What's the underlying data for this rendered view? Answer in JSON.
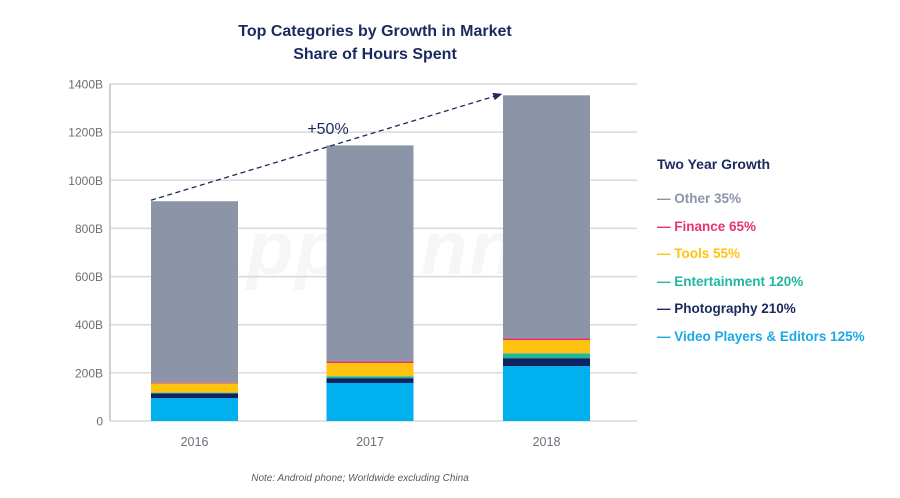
{
  "chart_data": {
    "type": "bar",
    "stacked": true,
    "title": "Top Categories by Growth in Market Share of Hours Spent",
    "title_lines": [
      "Top Categories by Growth in Market",
      "Share of Hours Spent"
    ],
    "xlabel": "",
    "ylabel": "",
    "categories": [
      "2016",
      "2017",
      "2018"
    ],
    "ylim": [
      0,
      1400
    ],
    "yticks": [
      0,
      200,
      400,
      600,
      800,
      1000,
      1200,
      1400
    ],
    "ytick_labels": [
      "0",
      "200B",
      "400B",
      "600B",
      "800B",
      "1000B",
      "1200B",
      "1400B"
    ],
    "grid": true,
    "series": [
      {
        "name": "Video Players & Editors",
        "color": "#00b0ef",
        "values": [
          95,
          158,
          228
        ]
      },
      {
        "name": "Photography",
        "color": "#0f2262",
        "values": [
          20,
          20,
          33
        ]
      },
      {
        "name": "Entertainment",
        "color": "#1fb89e",
        "values": [
          3,
          8,
          20
        ]
      },
      {
        "name": "Tools",
        "color": "#ffc20e",
        "values": [
          38,
          55,
          55
        ]
      },
      {
        "name": "Finance",
        "color": "#e8336e",
        "values": [
          3,
          7,
          7
        ]
      },
      {
        "name": "Other",
        "color": "#8c94a8",
        "values": [
          754,
          897,
          1010
        ]
      }
    ],
    "totals": [
      913,
      1145,
      1353
    ],
    "annotation": {
      "text": "+50%",
      "from": "2016",
      "to": "2018",
      "style": "dashed-arrow"
    },
    "legend": {
      "title": "Two Year Growth",
      "placement": "right",
      "items": [
        {
          "label": "Other 35%",
          "color": "#8c94a8"
        },
        {
          "label": "Finance 65%",
          "color": "#e8336e"
        },
        {
          "label": "Tools 55%",
          "color": "#ffc20e"
        },
        {
          "label": "Entertainment 120%",
          "color": "#1fb89e"
        },
        {
          "label": "Photography 210%",
          "color": "#1b2a5e"
        },
        {
          "label": "Video Players & Editors 125%",
          "color": "#1aa8e6"
        }
      ]
    },
    "note": "Note: Android phone; Worldwide excluding China",
    "watermark": "App Annie"
  }
}
